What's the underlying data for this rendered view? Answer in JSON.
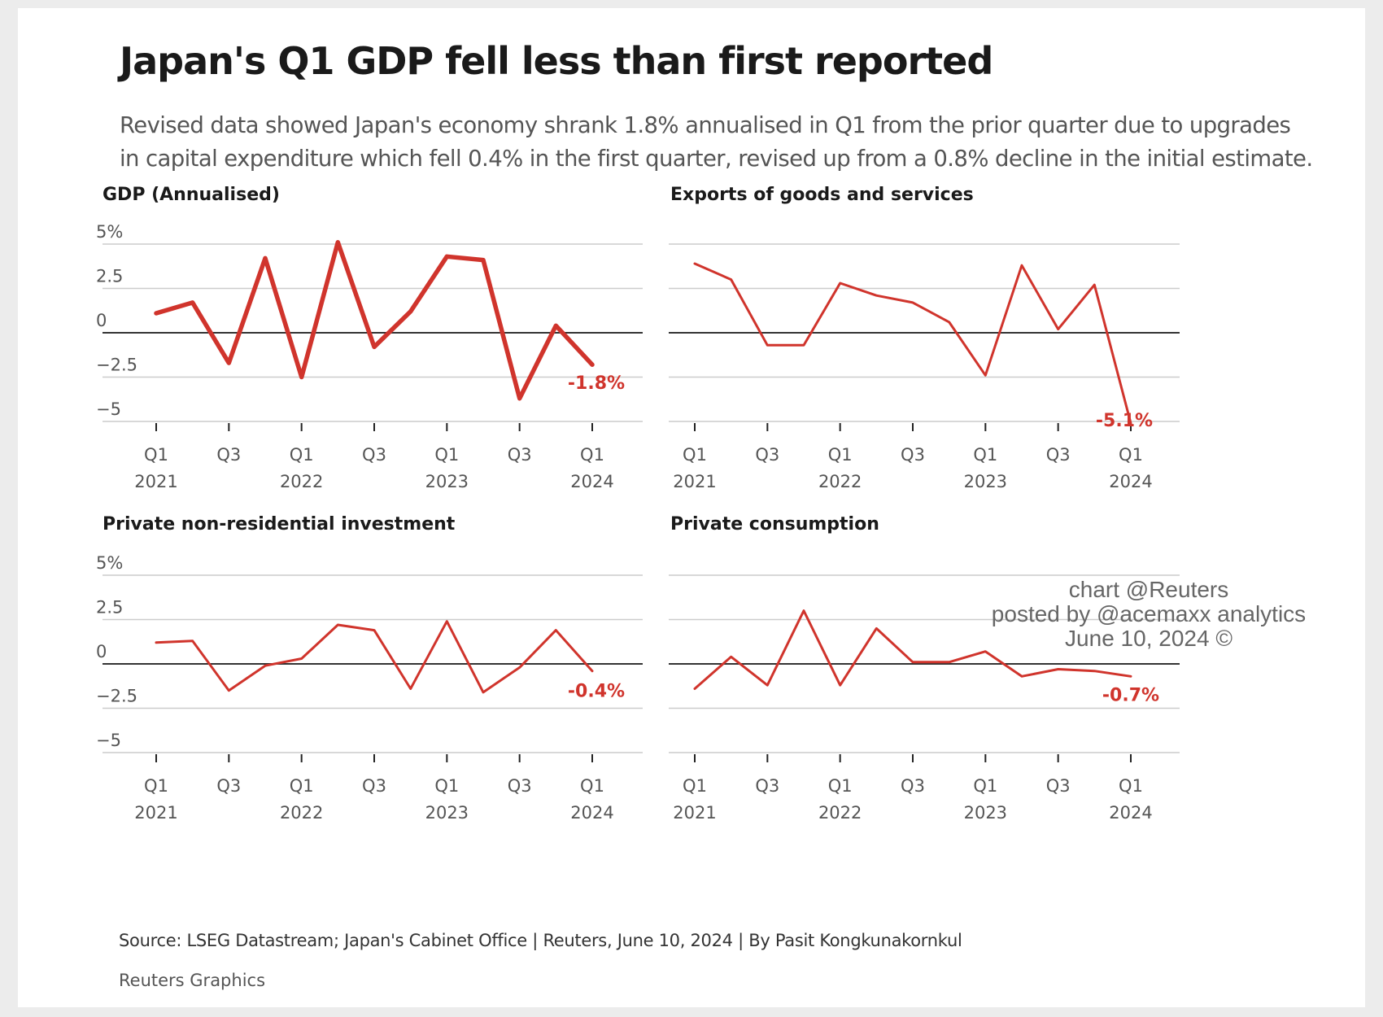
{
  "title": "Japan's Q1 GDP fell less than first reported",
  "subtitle": "Revised data showed Japan's economy shrank 1.8% annualised in Q1 from the prior quarter due to upgrades in capital expenditure which fell 0.4% in the first quarter, revised up from a 0.8% decline in the initial estimate.",
  "source": "Source: LSEG Datastream; Japan's Cabinet Office | Reuters, June 10, 2024 | By Pasit Kongkunakornkul",
  "credit": "Reuters Graphics",
  "watermark": {
    "line1": "chart @Reuters",
    "line2": "posted by @acemaxx analytics",
    "line3": "June 10, 2024 ©"
  },
  "colors": {
    "line": "#d0342c",
    "label": "#d0342c",
    "grid": "#cccccc",
    "zero": "#333333",
    "text": "#555555"
  },
  "chart_data": [
    {
      "type": "line",
      "title": "GDP (Annualised)",
      "x": [
        "Q1 2021",
        "Q2 2021",
        "Q3 2021",
        "Q4 2021",
        "Q1 2022",
        "Q2 2022",
        "Q3 2022",
        "Q4 2022",
        "Q1 2023",
        "Q2 2023",
        "Q3 2023",
        "Q4 2023",
        "Q1 2024"
      ],
      "values": [
        1.1,
        1.7,
        -1.7,
        4.2,
        -2.5,
        5.1,
        -0.8,
        1.2,
        4.3,
        4.1,
        -3.7,
        0.4,
        -1.8
      ],
      "ylim": [
        -5,
        5
      ],
      "yticks": [
        5,
        2.5,
        0,
        -2.5,
        -5
      ],
      "ytick_labels": [
        "5%",
        "2.5",
        "0",
        "−2.5",
        "−5"
      ],
      "xtick_labels": [
        [
          "Q1",
          "2021"
        ],
        [
          "Q3",
          ""
        ],
        [
          "Q1",
          "2022"
        ],
        [
          "Q3",
          ""
        ],
        [
          "Q1",
          "2023"
        ],
        [
          "Q3",
          ""
        ],
        [
          "Q1",
          "2024"
        ]
      ],
      "last_label": "-1.8%",
      "thick": true
    },
    {
      "type": "line",
      "title": "Exports of goods and services",
      "x": [
        "Q1 2021",
        "Q2 2021",
        "Q3 2021",
        "Q4 2021",
        "Q1 2022",
        "Q2 2022",
        "Q3 2022",
        "Q4 2022",
        "Q1 2023",
        "Q2 2023",
        "Q3 2023",
        "Q4 2023",
        "Q1 2024"
      ],
      "values": [
        3.9,
        3.0,
        -0.7,
        -0.7,
        2.8,
        2.1,
        1.7,
        0.6,
        -2.4,
        3.8,
        0.2,
        2.7,
        -5.1
      ],
      "ylim": [
        -5,
        5
      ],
      "yticks": [
        5,
        2.5,
        0,
        -2.5,
        -5
      ],
      "ytick_labels": [],
      "xtick_labels": [
        [
          "Q1",
          "2021"
        ],
        [
          "Q3",
          ""
        ],
        [
          "Q1",
          "2022"
        ],
        [
          "Q3",
          ""
        ],
        [
          "Q1",
          "2023"
        ],
        [
          "Q3",
          ""
        ],
        [
          "Q1",
          "2024"
        ]
      ],
      "last_label": "-5.1%",
      "thick": false
    },
    {
      "type": "line",
      "title": "Private non-residential investment",
      "x": [
        "Q1 2021",
        "Q2 2021",
        "Q3 2021",
        "Q4 2021",
        "Q1 2022",
        "Q2 2022",
        "Q3 2022",
        "Q4 2022",
        "Q1 2023",
        "Q2 2023",
        "Q3 2023",
        "Q4 2023",
        "Q1 2024"
      ],
      "values": [
        1.2,
        1.3,
        -1.5,
        -0.1,
        0.3,
        2.2,
        1.9,
        -1.4,
        2.4,
        -1.6,
        -0.2,
        1.9,
        -0.4
      ],
      "ylim": [
        -5,
        5
      ],
      "yticks": [
        5,
        2.5,
        0,
        -2.5,
        -5
      ],
      "ytick_labels": [
        "5%",
        "2.5",
        "0",
        "−2.5",
        "−5"
      ],
      "xtick_labels": [
        [
          "Q1",
          "2021"
        ],
        [
          "Q3",
          ""
        ],
        [
          "Q1",
          "2022"
        ],
        [
          "Q3",
          ""
        ],
        [
          "Q1",
          "2023"
        ],
        [
          "Q3",
          ""
        ],
        [
          "Q1",
          "2024"
        ]
      ],
      "last_label": "-0.4%",
      "thick": false
    },
    {
      "type": "line",
      "title": "Private consumption",
      "x": [
        "Q1 2021",
        "Q2 2021",
        "Q3 2021",
        "Q4 2021",
        "Q1 2022",
        "Q2 2022",
        "Q3 2022",
        "Q4 2022",
        "Q1 2023",
        "Q2 2023",
        "Q3 2023",
        "Q4 2023",
        "Q1 2024"
      ],
      "values": [
        -1.4,
        0.4,
        -1.2,
        3.0,
        -1.2,
        2.0,
        0.1,
        0.1,
        0.7,
        -0.7,
        -0.3,
        -0.4,
        -0.7
      ],
      "ylim": [
        -5,
        5
      ],
      "yticks": [
        5,
        2.5,
        0,
        -2.5,
        -5
      ],
      "ytick_labels": [],
      "xtick_labels": [
        [
          "Q1",
          "2021"
        ],
        [
          "Q3",
          ""
        ],
        [
          "Q1",
          "2022"
        ],
        [
          "Q3",
          ""
        ],
        [
          "Q1",
          "2023"
        ],
        [
          "Q3",
          ""
        ],
        [
          "Q1",
          "2024"
        ]
      ],
      "last_label": "-0.7%",
      "thick": false
    }
  ]
}
